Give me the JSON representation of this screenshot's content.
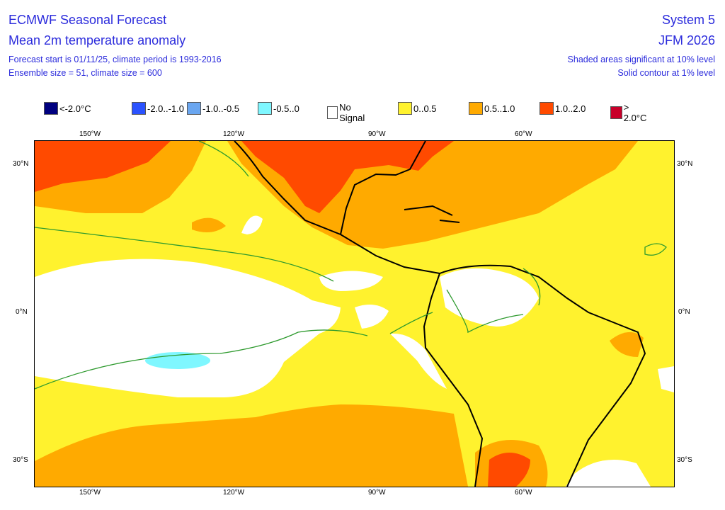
{
  "header": {
    "title": "ECMWF Seasonal Forecast",
    "subtitle": "Mean 2m temperature anomaly",
    "info1": "Forecast start is 01/11/25, climate period is 1993-2016",
    "info2": "Ensemble size = 51, climate size = 600",
    "system": "System 5",
    "period": "JFM 2026",
    "note1": "Shaded areas significant at 10% level",
    "note2": "Solid contour at 1% level"
  },
  "legend": [
    {
      "label": "<-2.0°C",
      "color": "#00007f"
    },
    {
      "label": "-2.0..-1.0",
      "color": "#2a52ff"
    },
    {
      "label": "-1.0..-0.5",
      "color": "#6aa6f0"
    },
    {
      "label": "-0.5..0",
      "color": "#7ff7ff"
    },
    {
      "label": "No Signal",
      "color": "#ffffff"
    },
    {
      "label": "0..0.5",
      "color": "#fff22e"
    },
    {
      "label": "0.5..1.0",
      "color": "#ffaa00"
    },
    {
      "label": "1.0..2.0",
      "color": "#ff4a00"
    },
    {
      "label": "> 2.0°C",
      "color": "#c8002a"
    }
  ],
  "axes": {
    "lon_labels": [
      "150°W",
      "120°W",
      "90°W",
      "60°W"
    ],
    "lat_labels": [
      "30°N",
      "0°N",
      "30°S"
    ]
  }
}
